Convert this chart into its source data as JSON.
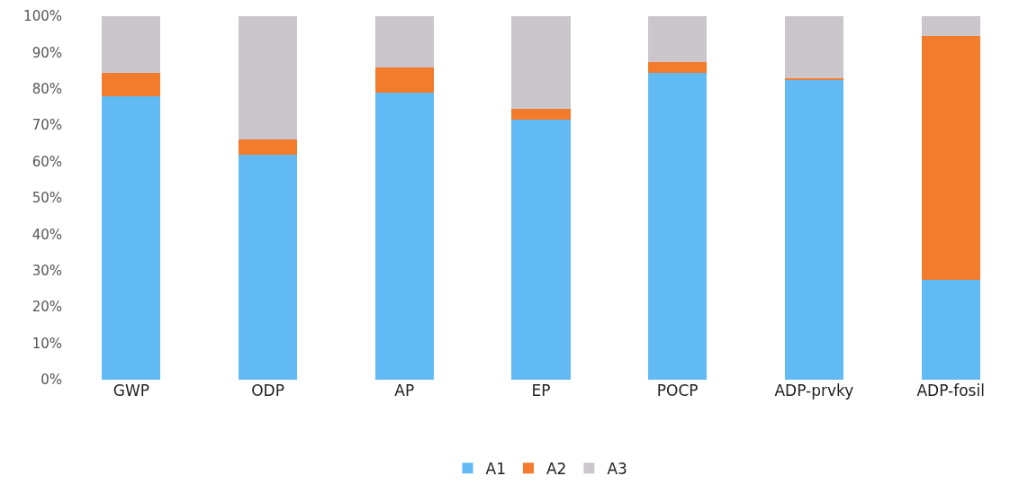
{
  "chart_data": {
    "type": "bar",
    "stacked": true,
    "categories": [
      "GWP",
      "ODP",
      "AP",
      "EP",
      "POCP",
      "ADP-prvky",
      "ADP-fosil"
    ],
    "series": [
      {
        "name": "A1",
        "color": "#62baf5",
        "values": [
          78,
          62,
          79,
          71.5,
          84.5,
          82.5,
          27.5
        ]
      },
      {
        "name": "A2",
        "color": "#f27b2c",
        "values": [
          6.5,
          4,
          7,
          3,
          3,
          0.3,
          67
        ]
      },
      {
        "name": "A3",
        "color": "#cac6cc",
        "values": [
          15.5,
          34,
          14,
          25.5,
          12.5,
          17.2,
          5.5
        ]
      }
    ],
    "ylim": [
      0,
      100
    ],
    "yticks": [
      {
        "value": 0,
        "label": "0%"
      },
      {
        "value": 10,
        "label": "10%"
      },
      {
        "value": 20,
        "label": "20%"
      },
      {
        "value": 30,
        "label": "30%"
      },
      {
        "value": 40,
        "label": "40%"
      },
      {
        "value": 50,
        "label": "50%"
      },
      {
        "value": 60,
        "label": "60%"
      },
      {
        "value": 70,
        "label": "70%"
      },
      {
        "value": 80,
        "label": "80%"
      },
      {
        "value": 90,
        "label": "90%"
      },
      {
        "value": 100,
        "label": "100%"
      }
    ],
    "legend": "bottom",
    "grid": false
  }
}
